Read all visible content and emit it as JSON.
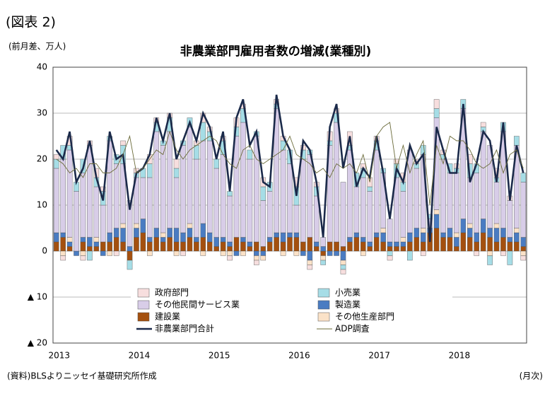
{
  "figure_label": "(図表 2)",
  "source": "(資料)BLSよりニッセイ基礎研究所作成",
  "chart_data": {
    "type": "bar",
    "title": "非農業部門雇用者数の増減(業種別)",
    "y_label": "(前月差、万人)",
    "x_label": "(月次)",
    "categories": [
      "2013",
      null,
      null,
      null,
      null,
      null,
      null,
      null,
      null,
      null,
      null,
      null,
      "2014",
      null,
      null,
      null,
      null,
      null,
      null,
      null,
      null,
      null,
      null,
      null,
      "2015",
      null,
      null,
      null,
      null,
      null,
      null,
      null,
      null,
      null,
      null,
      null,
      "2016",
      null,
      null,
      null,
      null,
      null,
      null,
      null,
      null,
      null,
      null,
      null,
      "2017",
      null,
      null,
      null,
      null,
      null,
      null,
      null,
      null,
      null,
      null,
      null,
      "2018",
      null,
      null,
      null,
      null,
      null,
      null,
      null,
      null,
      null,
      null
    ],
    "ylim": [
      -20,
      40
    ],
    "yticks": [
      40,
      30,
      20,
      10,
      0,
      {
        "value": -10,
        "label": "▲ 10"
      },
      {
        "value": -20,
        "label": "▲ 20"
      }
    ],
    "grid": true,
    "series": [
      {
        "name": "政府部門",
        "color": "#f7dede",
        "values": [
          1,
          -1,
          2,
          0,
          -1,
          1,
          2,
          1,
          0,
          -1,
          1,
          0,
          1,
          0,
          2,
          1,
          0,
          1,
          2,
          -1,
          0,
          1,
          2,
          1,
          0,
          1,
          -1,
          2,
          1,
          0,
          -1,
          2,
          0,
          1,
          1,
          0,
          2,
          1,
          -1,
          1,
          0,
          2,
          1,
          -1,
          3,
          0,
          1,
          2,
          1,
          0,
          -1,
          1,
          2,
          0,
          1,
          -1,
          0,
          2,
          1,
          0,
          1,
          0,
          2,
          -1,
          1,
          0,
          2,
          -1,
          1,
          0,
          -1
        ]
      },
      {
        "name": "小売業",
        "color": "#a6dde6",
        "values": [
          2,
          3,
          1,
          2,
          3,
          -2,
          2,
          3,
          1,
          2,
          4,
          -2,
          1,
          2,
          3,
          2,
          1,
          3,
          2,
          1,
          2,
          3,
          4,
          2,
          2,
          3,
          1,
          2,
          3,
          2,
          1,
          3,
          2,
          1,
          2,
          3,
          4,
          2,
          1,
          2,
          -1,
          1,
          2,
          -1,
          1,
          3,
          2,
          1,
          2,
          1,
          -1,
          3,
          2,
          -2,
          1,
          2,
          1,
          2,
          1,
          2,
          1,
          2,
          3,
          2,
          1,
          -2,
          1,
          2,
          -3,
          2,
          2
        ]
      },
      {
        "name": "その他民間サービス業",
        "color": "#d8cde8",
        "values": [
          14,
          16,
          19,
          13,
          14,
          20,
          11,
          8,
          20,
          14,
          13,
          10,
          10,
          9,
          13,
          21,
          19,
          21,
          11,
          19,
          21,
          17,
          18,
          20,
          15,
          18,
          10,
          22,
          25,
          18,
          23,
          10,
          10,
          27,
          18,
          15,
          6,
          18,
          18,
          10,
          2,
          21,
          26,
          14,
          19,
          10,
          13,
          11,
          18,
          12,
          5,
          14,
          10,
          18,
          13,
          16,
          2,
          20,
          16,
          12,
          13,
          24,
          10,
          13,
          19,
          18,
          9,
          21,
          8,
          18,
          12
        ]
      },
      {
        "name": "製造業",
        "color": "#4a7cc2",
        "values": [
          2,
          1,
          1,
          -1,
          1,
          2,
          1,
          -1,
          2,
          2,
          3,
          1,
          2,
          3,
          1,
          2,
          1,
          2,
          3,
          2,
          2,
          1,
          3,
          2,
          2,
          1,
          1,
          -1,
          1,
          1,
          -1,
          -1,
          1,
          1,
          2,
          1,
          1,
          -1,
          -2,
          1,
          1,
          -1,
          -1,
          -2,
          1,
          1,
          1,
          1,
          1,
          2,
          1,
          1,
          1,
          2,
          2,
          2,
          1,
          3,
          1,
          2,
          2,
          3,
          2,
          2,
          3,
          2,
          3,
          2,
          1,
          2,
          2
        ]
      },
      {
        "name": "建設業",
        "color": "#a4500f",
        "values": [
          2,
          3,
          1,
          0,
          2,
          1,
          1,
          2,
          2,
          3,
          2,
          -2,
          3,
          4,
          2,
          3,
          2,
          3,
          2,
          2,
          3,
          2,
          3,
          2,
          1,
          2,
          1,
          3,
          2,
          1,
          2,
          1,
          2,
          3,
          2,
          3,
          3,
          2,
          3,
          1,
          -1,
          2,
          2,
          1,
          2,
          3,
          2,
          1,
          3,
          2,
          1,
          1,
          1,
          2,
          3,
          2,
          4,
          5,
          3,
          3,
          1,
          4,
          3,
          2,
          4,
          3,
          2,
          3,
          2,
          2,
          1
        ]
      },
      {
        "name": "その他生産部門",
        "color": "#fbe2c8",
        "values": [
          0,
          -1,
          1,
          0,
          -1,
          0,
          1,
          0,
          -1,
          0,
          1,
          0,
          1,
          0,
          -1,
          0,
          1,
          0,
          -1,
          0,
          1,
          0,
          -1,
          0,
          0,
          -1,
          -1,
          0,
          -1,
          0,
          -1,
          -1,
          0,
          0,
          -1,
          0,
          -1,
          0,
          -1,
          0,
          -1,
          0,
          0,
          -1,
          0,
          0,
          -1,
          0,
          0,
          1,
          0,
          0,
          1,
          0,
          0,
          1,
          0,
          1,
          0,
          0,
          1,
          0,
          1,
          0,
          0,
          -1,
          1,
          0,
          0,
          1,
          -1
        ]
      },
      {
        "name": "非農業部門合計",
        "color": "#1b2a4a",
        "line": true,
        "values": [
          22,
          20,
          26,
          15,
          18,
          24,
          16,
          11,
          26,
          20,
          21,
          9,
          17,
          18,
          21,
          29,
          24,
          30,
          20,
          24,
          28,
          24,
          30,
          27,
          20,
          26,
          13,
          29,
          33,
          23,
          26,
          15,
          14,
          34,
          25,
          22,
          12,
          24,
          22,
          15,
          3,
          27,
          32,
          18,
          25,
          14,
          18,
          16,
          25,
          17,
          7,
          18,
          15,
          23,
          19,
          21,
          2,
          27,
          22,
          17,
          17,
          32,
          15,
          19,
          26,
          24,
          15,
          28,
          11,
          23,
          17
        ]
      },
      {
        "name": "ADP調査",
        "color": "#6b6b3a",
        "line": true,
        "values": [
          20,
          19,
          17,
          18,
          16,
          19,
          19,
          17,
          17,
          18,
          21,
          25,
          17,
          18,
          20,
          22,
          21,
          26,
          22,
          20,
          22,
          23,
          24,
          25,
          24,
          21,
          19,
          18,
          22,
          23,
          20,
          19,
          20,
          21,
          22,
          25,
          21,
          20,
          19,
          17,
          18,
          16,
          19,
          18,
          19,
          17,
          21,
          15,
          25,
          27,
          28,
          18,
          23,
          17,
          21,
          24,
          10,
          23,
          19,
          25,
          24,
          24,
          22,
          19,
          18,
          19,
          22,
          17,
          21,
          22,
          18
        ]
      }
    ]
  }
}
